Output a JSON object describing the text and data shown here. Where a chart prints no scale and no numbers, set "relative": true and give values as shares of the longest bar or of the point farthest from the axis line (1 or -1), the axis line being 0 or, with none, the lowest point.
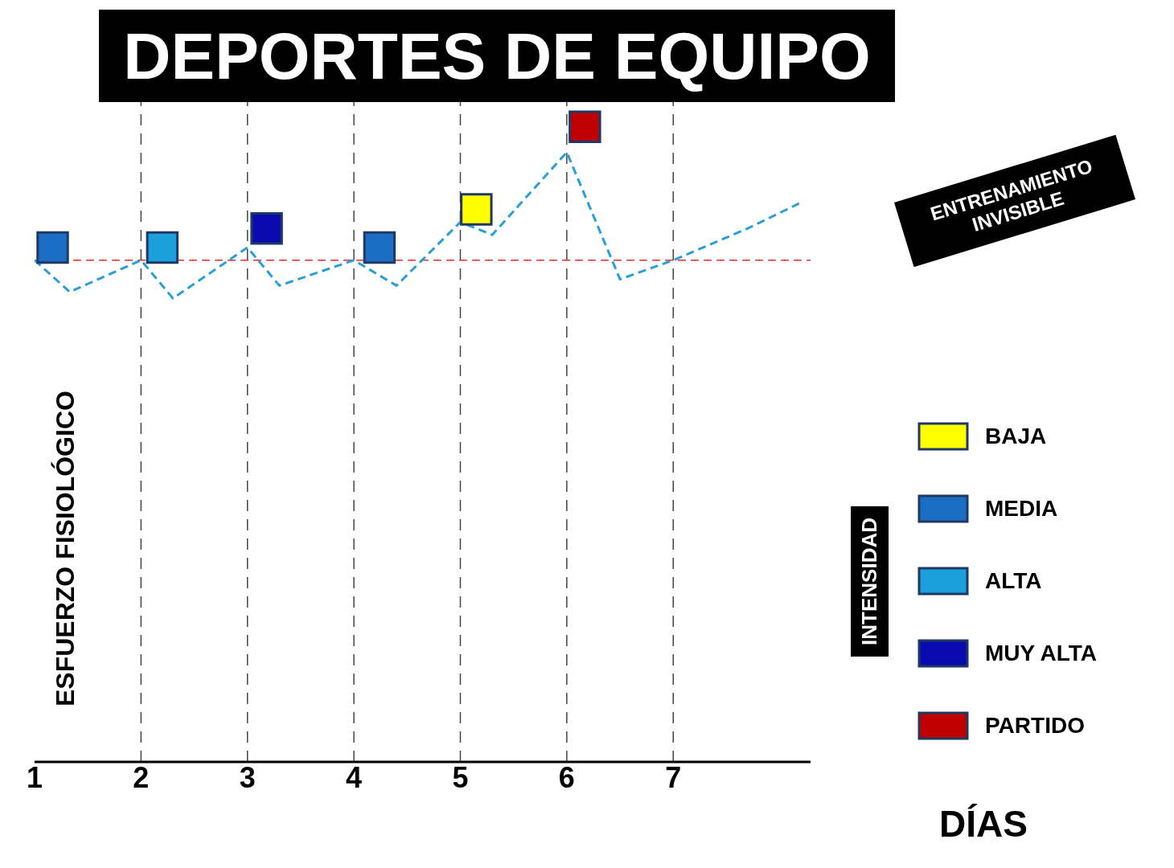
{
  "chart_data": {
    "type": "line",
    "title": "DEPORTES DE EQUIPO",
    "xlabel": "DÍAS",
    "ylabel": "ESFUERZO FISIOLÓGICO",
    "legend_title": "INTENSIDAD",
    "relative": true,
    "xlim": [
      1,
      8.29
    ],
    "xticks": [
      1,
      2,
      3,
      4,
      5,
      6,
      7
    ],
    "grid": "x",
    "legend": "bottom right",
    "series": [
      {
        "type": "scatter",
        "name": "BAJA",
        "color": "#ffff00",
        "marker": "square",
        "x": [
          5.15
        ],
        "values": [
          0.87
        ]
      },
      {
        "type": "scatter",
        "name": "MEDIA",
        "color": "#1a6fc4",
        "marker": "square",
        "x": [
          1.17,
          4.24
        ],
        "values": [
          0.81,
          0.81
        ]
      },
      {
        "type": "scatter",
        "name": "ALTA",
        "color": "#1ca0dc",
        "marker": "square",
        "x": [
          2.2
        ],
        "values": [
          0.81
        ]
      },
      {
        "type": "scatter",
        "name": "MUY ALTA",
        "color": "#0a0ab0",
        "marker": "square",
        "x": [
          3.18
        ],
        "values": [
          0.84
        ]
      },
      {
        "type": "scatter",
        "name": "PARTIDO",
        "color": "#c00000",
        "marker": "square",
        "x": [
          6.17
        ],
        "values": [
          1.0
        ]
      },
      {
        "color": "#2a9fd6",
        "line_style": "dashed",
        "marker": "none",
        "x": [
          1,
          1.33,
          2,
          2.3,
          3,
          3.3,
          4,
          4.4,
          5,
          5.3,
          6,
          6.5,
          7,
          7.7,
          8.19
        ],
        "values": [
          0.79,
          0.74,
          0.79,
          0.73,
          0.81,
          0.75,
          0.79,
          0.75,
          0.85,
          0.83,
          0.96,
          0.76,
          0.79,
          0.84,
          0.88
        ]
      }
    ],
    "ref_lines": [
      {
        "axis": "y",
        "value": 0.79,
        "color": "#e03030",
        "line_style": "dashed"
      }
    ],
    "annotations": [
      "ENTRENAMIENTO INVISIBLE"
    ]
  }
}
